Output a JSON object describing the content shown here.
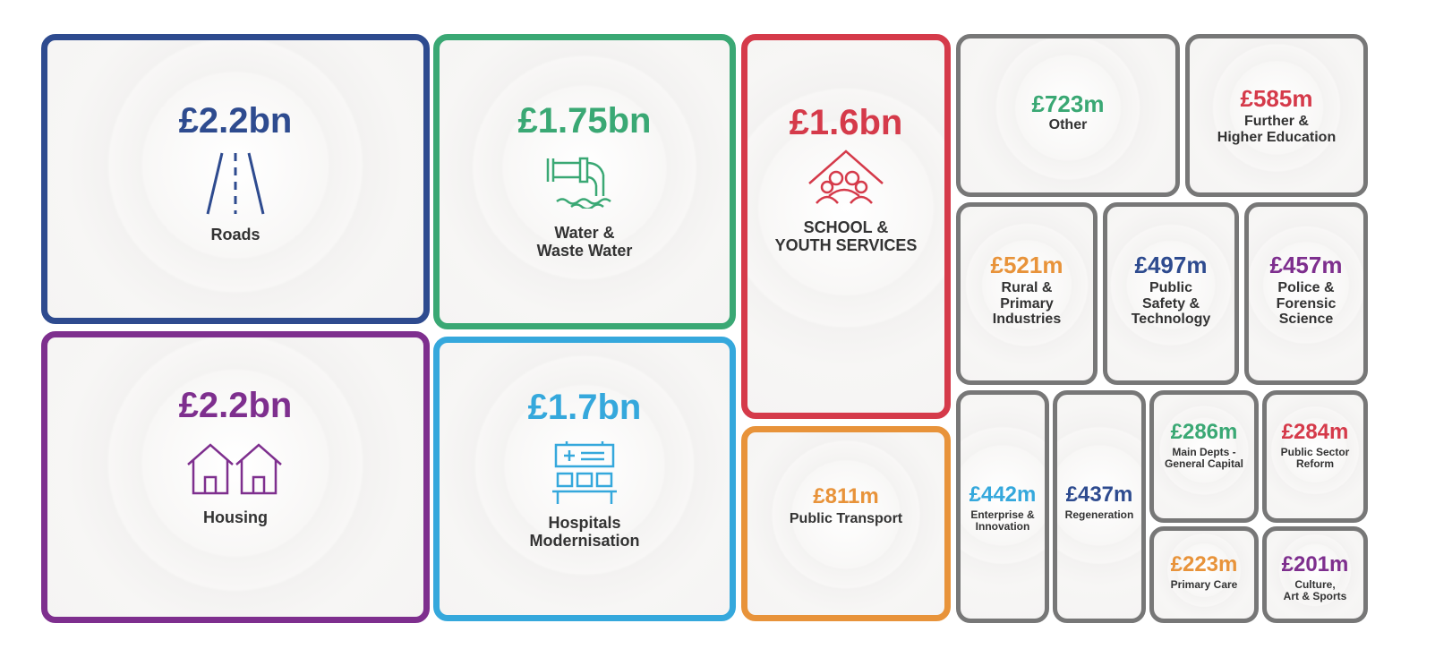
{
  "chart_data": {
    "type": "treemap",
    "tiles": [
      {
        "key": "roads",
        "value": "£2.2bn",
        "label": "Roads",
        "color": "#2e4b8f",
        "icon": "road-icon"
      },
      {
        "key": "housing",
        "value": "£2.2bn",
        "label": "Housing",
        "color": "#7e2f8e",
        "icon": "houses-icon"
      },
      {
        "key": "water",
        "value": "£1.75bn",
        "label": "Water &\nWaste Water",
        "color": "#3aa874",
        "icon": "pipe-water-icon"
      },
      {
        "key": "hospitals",
        "value": "£1.7bn",
        "label": "Hospitals\nModernisation",
        "color": "#35a8dc",
        "icon": "hospital-icon"
      },
      {
        "key": "schools",
        "value": "£1.6bn",
        "label": "SCHOOL &\nYOUTH SERVICES",
        "color": "#d53a4a",
        "icon": "school-icon"
      },
      {
        "key": "transport",
        "value": "£811m",
        "label": "Public Transport",
        "color": "#e8933a"
      },
      {
        "key": "other",
        "value": "£723m",
        "label": "Other",
        "color": "#3aa874"
      },
      {
        "key": "further",
        "value": "£585m",
        "label": "Further &\nHigher Education",
        "color": "#d53a4a"
      },
      {
        "key": "rural",
        "value": "£521m",
        "label": "Rural &\nPrimary\nIndustries",
        "color": "#e8933a"
      },
      {
        "key": "safety",
        "value": "£497m",
        "label": "Public\nSafety &\nTechnology",
        "color": "#2e4b8f"
      },
      {
        "key": "police",
        "value": "£457m",
        "label": "Police &\nForensic\nScience",
        "color": "#7e2f8e"
      },
      {
        "key": "enterprise",
        "value": "£442m",
        "label": "Enterprise &\nInnovation",
        "color": "#35a8dc"
      },
      {
        "key": "regeneration",
        "value": "£437m",
        "label": "Regeneration",
        "color": "#2e4b8f"
      },
      {
        "key": "maindepts",
        "value": "£286m",
        "label": "Main Depts -\nGeneral Capital",
        "color": "#3aa874"
      },
      {
        "key": "reform",
        "value": "£284m",
        "label": "Public Sector\nReform",
        "color": "#d53a4a"
      },
      {
        "key": "primarycare",
        "value": "£223m",
        "label": "Primary Care",
        "color": "#e8933a"
      },
      {
        "key": "culture",
        "value": "£201m",
        "label": "Culture,\nArt & Sports",
        "color": "#7e2f8e"
      }
    ]
  }
}
